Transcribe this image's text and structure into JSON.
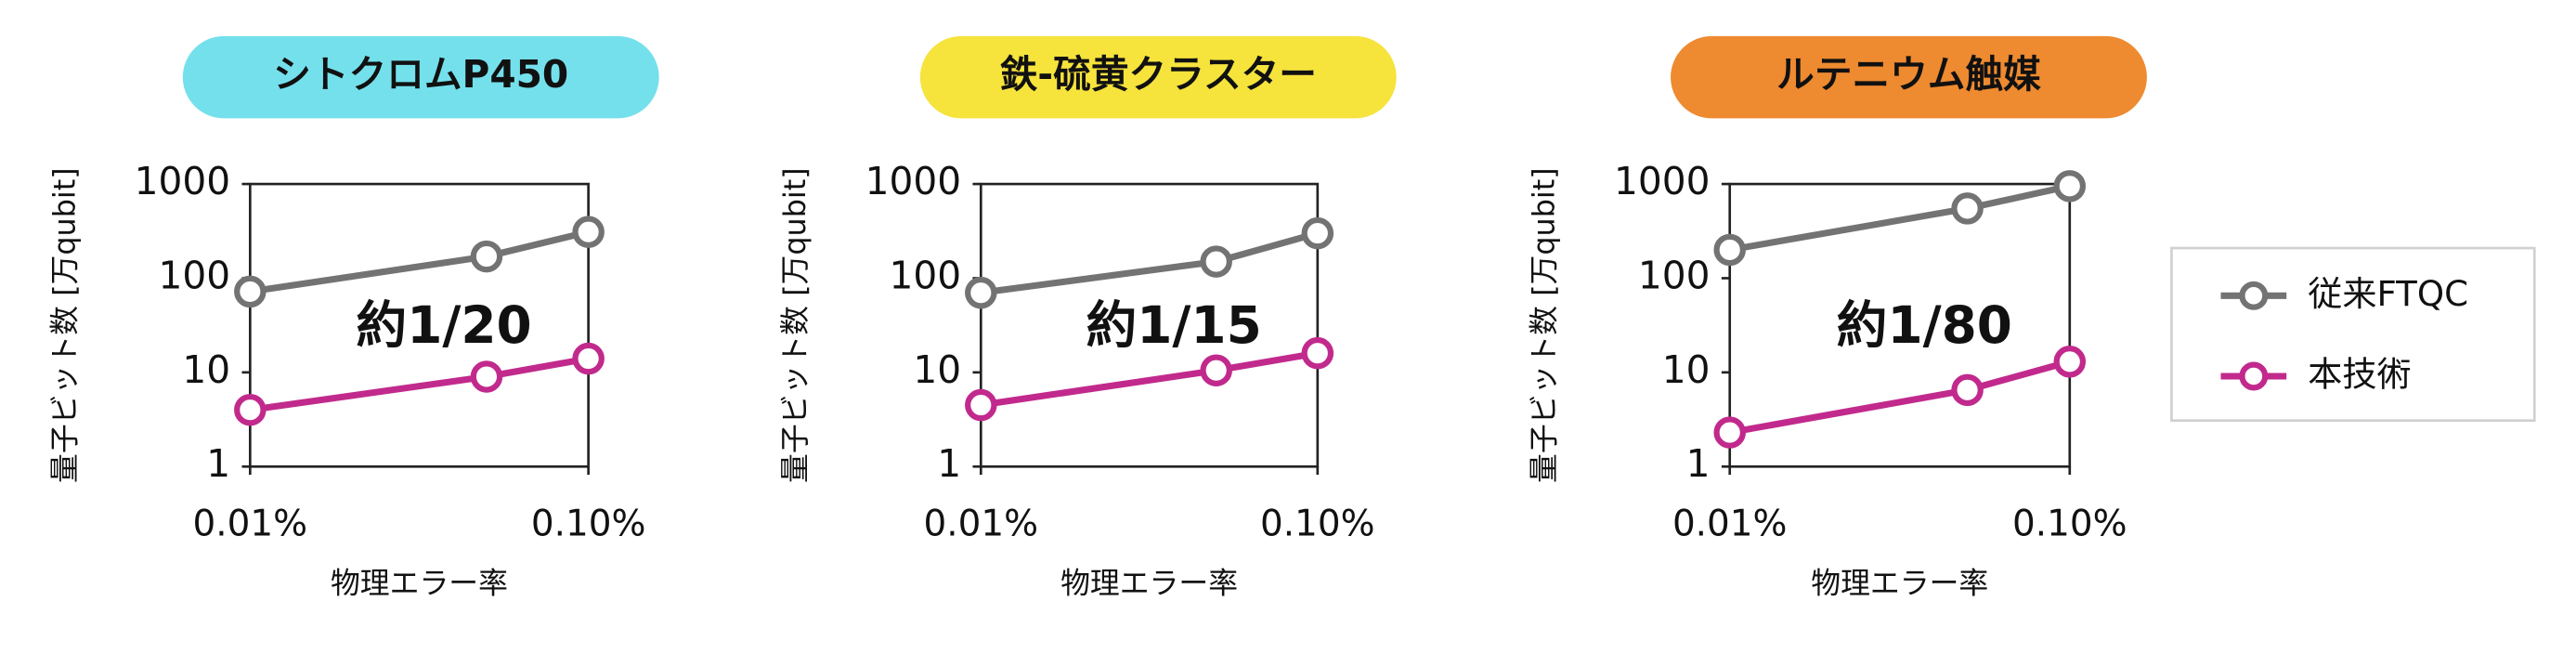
{
  "chart_data": [
    {
      "type": "line",
      "title": "シトクロムP450",
      "title_color": "#74e0ec",
      "annotation": "約1/20",
      "x_label": "物理エラー率",
      "y_label": "量子ビット数 [万qubit]",
      "log_x": true,
      "log_y": true,
      "x": [
        0.01,
        0.05,
        0.1
      ],
      "xlim": [
        0.01,
        0.1
      ],
      "xticks": [
        {
          "value": 0.01,
          "label": "0.01%"
        },
        {
          "value": 0.1,
          "label": "0.10%"
        }
      ],
      "ylim": [
        1,
        1000
      ],
      "yticks": [
        1,
        10,
        100,
        1000
      ],
      "series": [
        {
          "name": "従来FTQC",
          "color": "#737373",
          "values": [
            72,
            170,
            310
          ]
        },
        {
          "name": "本技術",
          "color": "#c12a8c",
          "values": [
            4,
            9,
            14
          ]
        }
      ]
    },
    {
      "type": "line",
      "title": "鉄-硫黄クラスター",
      "title_color": "#f6e33c",
      "annotation": "約1/15",
      "x_label": "物理エラー率",
      "y_label": "量子ビット数 [万qubit]",
      "log_x": true,
      "log_y": true,
      "x": [
        0.01,
        0.05,
        0.1
      ],
      "xlim": [
        0.01,
        0.1
      ],
      "xticks": [
        {
          "value": 0.01,
          "label": "0.01%"
        },
        {
          "value": 0.1,
          "label": "0.10%"
        }
      ],
      "ylim": [
        1,
        1000
      ],
      "yticks": [
        1,
        10,
        100,
        1000
      ],
      "series": [
        {
          "name": "従来FTQC",
          "color": "#737373",
          "values": [
            70,
            150,
            300
          ]
        },
        {
          "name": "本技術",
          "color": "#c12a8c",
          "values": [
            4.5,
            10.5,
            16
          ]
        }
      ]
    },
    {
      "type": "line",
      "title": "ルテニウム触媒",
      "title_color": "#ee8a30",
      "annotation": "約1/80",
      "x_label": "物理エラー率",
      "y_label": "量子ビット数 [万qubit]",
      "log_x": true,
      "log_y": true,
      "x": [
        0.01,
        0.05,
        0.1
      ],
      "xlim": [
        0.01,
        0.1
      ],
      "xticks": [
        {
          "value": 0.01,
          "label": "0.01%"
        },
        {
          "value": 0.1,
          "label": "0.10%"
        }
      ],
      "ylim": [
        1,
        1000
      ],
      "yticks": [
        1,
        10,
        100,
        1000
      ],
      "series": [
        {
          "name": "従来FTQC",
          "color": "#737373",
          "values": [
            200,
            550,
            950
          ]
        },
        {
          "name": "本技術",
          "color": "#c12a8c",
          "values": [
            2.3,
            6.5,
            13
          ]
        }
      ]
    }
  ]
}
